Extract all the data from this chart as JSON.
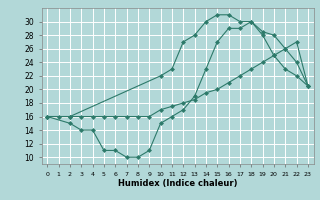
{
  "xlabel": "Humidex (Indice chaleur)",
  "background_color": "#b2d8d8",
  "grid_color": "#ffffff",
  "line_color": "#2d7a6a",
  "xlim": [
    -0.5,
    23.5
  ],
  "ylim": [
    9,
    32
  ],
  "xticks": [
    0,
    1,
    2,
    3,
    4,
    5,
    6,
    7,
    8,
    9,
    10,
    11,
    12,
    13,
    14,
    15,
    16,
    17,
    18,
    19,
    20,
    21,
    22,
    23
  ],
  "yticks": [
    10,
    12,
    14,
    16,
    18,
    20,
    22,
    24,
    26,
    28,
    30
  ],
  "line1_x": [
    0,
    2,
    3,
    4,
    5,
    6,
    7,
    8,
    9,
    10,
    11,
    12,
    13,
    14,
    15,
    16,
    17,
    18,
    19,
    20,
    21,
    22,
    23
  ],
  "line1_y": [
    16,
    15,
    14,
    14,
    11,
    11,
    10,
    10,
    11,
    15,
    16,
    17,
    19,
    23,
    27,
    29,
    29,
    30,
    28,
    25,
    23,
    22,
    20.5
  ],
  "line2_x": [
    0,
    2,
    10,
    11,
    12,
    13,
    14,
    15,
    16,
    17,
    18,
    19,
    20,
    21,
    22,
    23
  ],
  "line2_y": [
    16,
    16,
    22,
    23,
    27,
    28,
    30,
    31,
    31,
    30,
    30,
    28.5,
    28,
    26,
    24,
    20.5
  ],
  "line3_x": [
    0,
    1,
    2,
    3,
    4,
    5,
    6,
    7,
    8,
    9,
    10,
    11,
    12,
    13,
    14,
    15,
    16,
    17,
    18,
    19,
    20,
    21,
    22,
    23
  ],
  "line3_y": [
    16,
    16,
    16,
    16,
    16,
    16,
    16,
    16,
    16,
    16,
    17,
    17.5,
    18,
    18.5,
    19.5,
    20,
    21,
    22,
    23,
    24,
    25,
    26,
    27,
    20.5
  ]
}
